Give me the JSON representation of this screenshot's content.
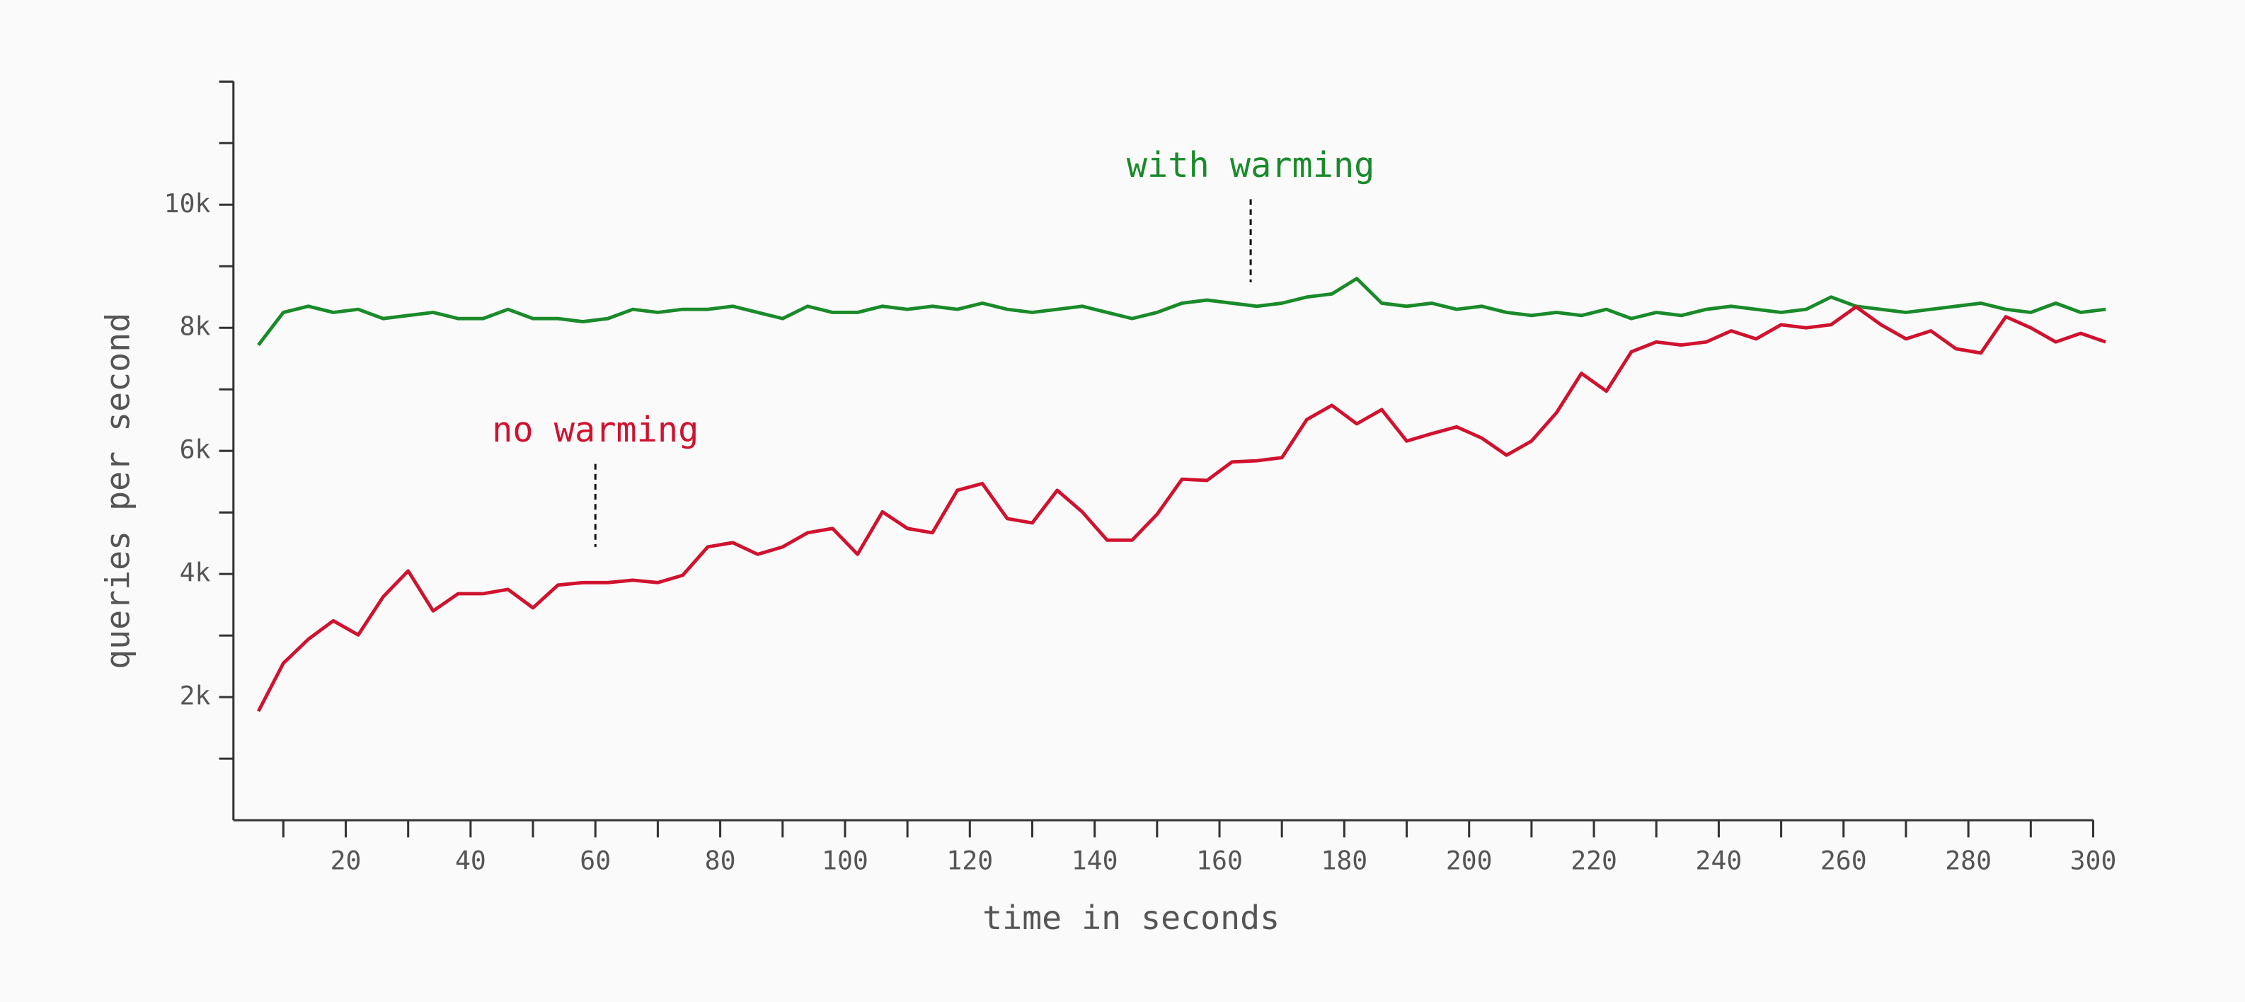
{
  "chart_data": {
    "type": "line",
    "xlabel": "time in seconds",
    "ylabel": "queries per second",
    "x": [
      6,
      10,
      14,
      18,
      22,
      26,
      30,
      34,
      38,
      42,
      46,
      50,
      54,
      58,
      62,
      66,
      70,
      74,
      78,
      82,
      86,
      90,
      94,
      98,
      102,
      106,
      110,
      114,
      118,
      122,
      126,
      130,
      134,
      138,
      142,
      146,
      150,
      154,
      158,
      162,
      166,
      170,
      174,
      178,
      182,
      186,
      190,
      194,
      198,
      202,
      206,
      210,
      214,
      218,
      222,
      226,
      230,
      234,
      238,
      242,
      246,
      250,
      254,
      258,
      262,
      266,
      270,
      274,
      278,
      282,
      286,
      290,
      294,
      298,
      302
    ],
    "series": [
      {
        "name": "with warming",
        "color": "#1a8a2a",
        "values": [
          7720,
          8250,
          8350,
          8250,
          8300,
          8150,
          8200,
          8250,
          8150,
          8150,
          8300,
          8150,
          8150,
          8100,
          8150,
          8300,
          8250,
          8300,
          8300,
          8350,
          8250,
          8150,
          8350,
          8250,
          8250,
          8350,
          8300,
          8350,
          8300,
          8400,
          8300,
          8250,
          8300,
          8350,
          8250,
          8150,
          8250,
          8400,
          8450,
          8400,
          8350,
          8400,
          8500,
          8550,
          8800,
          8400,
          8350,
          8400,
          8300,
          8350,
          8250,
          8200,
          8250,
          8200,
          8300,
          8150,
          8250,
          8200,
          8300,
          8350,
          8300,
          8250,
          8300,
          8500,
          8350,
          8300,
          8250,
          8300,
          8350,
          8400,
          8300,
          8250,
          8400,
          8250,
          8300
        ]
      },
      {
        "name": "no warming",
        "color": "#d0122f",
        "values": [
          1770,
          2550,
          2940,
          3240,
          3010,
          3630,
          4050,
          3400,
          3680,
          3680,
          3750,
          3450,
          3820,
          3860,
          3860,
          3900,
          3860,
          3980,
          4440,
          4510,
          4320,
          4440,
          4670,
          4740,
          4320,
          5010,
          4740,
          4670,
          5360,
          5470,
          4900,
          4830,
          5360,
          5010,
          4550,
          4550,
          4970,
          5540,
          5520,
          5820,
          5840,
          5890,
          6510,
          6740,
          6440,
          6670,
          6160,
          6280,
          6390,
          6210,
          5930,
          6160,
          6620,
          7260,
          6970,
          7610,
          7770,
          7720,
          7770,
          7950,
          7820,
          8050,
          8000,
          8050,
          8340,
          8050,
          7820,
          7950,
          7660,
          7590,
          8180,
          8000,
          7770,
          7910,
          7770
        ]
      }
    ],
    "annotations": [
      {
        "text": "with warming",
        "x": 165,
        "y": 8740,
        "series": 0
      },
      {
        "text": "no warming",
        "x": 60,
        "y": 4440,
        "series": 1
      }
    ],
    "xlim": [
      2,
      300
    ],
    "ylim": [
      0,
      12000
    ],
    "xticks": [
      20,
      40,
      60,
      80,
      100,
      120,
      140,
      160,
      180,
      200,
      220,
      240,
      260,
      280,
      300
    ],
    "xminor": [
      10,
      30,
      50,
      70,
      90,
      110,
      130,
      150,
      170,
      190,
      210,
      230,
      250,
      270,
      290
    ],
    "yticks": [
      {
        "value": 2000,
        "label": "2k"
      },
      {
        "value": 4000,
        "label": "4k"
      },
      {
        "value": 6000,
        "label": "6k"
      },
      {
        "value": 8000,
        "label": "8k"
      },
      {
        "value": 10000,
        "label": "10k"
      }
    ],
    "yminor": [
      1000,
      3000,
      5000,
      7000,
      9000,
      11000,
      12000
    ]
  }
}
